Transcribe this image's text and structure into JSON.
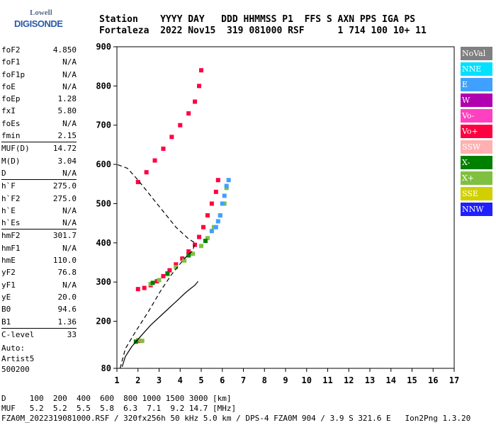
{
  "logo": {
    "line1": "Lowell",
    "line2": "DIGISONDE"
  },
  "header": {
    "line1": "Station    YYYY DAY   DDD HHMMSS P1  FFS S AXN PPS IGA PS",
    "line2": "Fortaleza  2022 Nov15  319 081000 RSF      1 714 100 10+ 11"
  },
  "params": {
    "group1": [
      {
        "name": "foF2",
        "value": "4.850"
      },
      {
        "name": "foF1",
        "value": "N/A"
      },
      {
        "name": "foF1p",
        "value": "N/A"
      },
      {
        "name": "foE",
        "value": "N/A"
      },
      {
        "name": "foEp",
        "value": "1.28"
      },
      {
        "name": "fxI",
        "value": "5.80"
      },
      {
        "name": "foEs",
        "value": "N/A"
      },
      {
        "name": "fmin",
        "value": "2.15"
      }
    ],
    "group2": [
      {
        "name": "MUF(D)",
        "value": "14.72"
      },
      {
        "name": "M(D)",
        "value": "3.04"
      },
      {
        "name": "D",
        "value": "N/A"
      }
    ],
    "group3": [
      {
        "name": "h`F",
        "value": "275.0"
      },
      {
        "name": "h`F2",
        "value": "275.0"
      },
      {
        "name": "h`E",
        "value": "N/A"
      },
      {
        "name": "h`Es",
        "value": "N/A"
      }
    ],
    "group4": [
      {
        "name": "hmF2",
        "value": "301.7"
      },
      {
        "name": "hmF1",
        "value": "N/A"
      },
      {
        "name": "hmE",
        "value": "110.0"
      },
      {
        "name": "yF2",
        "value": "76.8"
      },
      {
        "name": "yF1",
        "value": "N/A"
      },
      {
        "name": "yE",
        "value": "20.0"
      },
      {
        "name": "B0",
        "value": "94.6"
      },
      {
        "name": "B1",
        "value": "1.36"
      }
    ],
    "group5": [
      {
        "name": "C-level",
        "value": "33"
      }
    ]
  },
  "auto": {
    "line1": "Auto:",
    "line2": "Artist5",
    "line3": "500200"
  },
  "legend": [
    {
      "label": "NoVal",
      "color": "#808080"
    },
    {
      "label": "NNE",
      "color": "#00e0ff"
    },
    {
      "label": "E",
      "color": "#40a0ff"
    },
    {
      "label": "W",
      "color": "#b000b0"
    },
    {
      "label": "Vo-",
      "color": "#ff40c0"
    },
    {
      "label": "Vo+",
      "color": "#ff0040"
    },
    {
      "label": "SSW",
      "color": "#ffb0b0"
    },
    {
      "label": "X-",
      "color": "#008000"
    },
    {
      "label": "X+",
      "color": "#80c040"
    },
    {
      "label": "SSE",
      "color": "#d0d000"
    },
    {
      "label": "NNW",
      "color": "#2020ff"
    }
  ],
  "footer": {
    "line1": "D     100  200  400  600  800 1000 1500 3000 [km]",
    "line2": "MUF   5.2  5.2  5.5  5.8  6.3  7.1  9.2 14.7 [MHz]",
    "line3": "FZA0M_2022319081000.RSF / 320fx256h 50 kHz 5.0 km / DPS-4 FZA0M 904 / 3.9 S 321.6 E   Ion2Png 1.3.20"
  },
  "chart_data": {
    "type": "scatter",
    "xlim": [
      1,
      17
    ],
    "ylim": [
      80,
      900
    ],
    "x_ticks": [
      1,
      2,
      3,
      4,
      5,
      6,
      7,
      8,
      9,
      10,
      11,
      12,
      13,
      14,
      15,
      16,
      17
    ],
    "y_ticks": [
      80,
      200,
      300,
      400,
      500,
      600,
      700,
      800,
      900
    ],
    "series": [
      {
        "name": "Vo+",
        "points": [
          [
            2.0,
            282
          ],
          [
            2.3,
            285
          ],
          [
            2.6,
            292
          ],
          [
            2.9,
            302
          ],
          [
            3.2,
            315
          ],
          [
            3.5,
            330
          ],
          [
            3.8,
            345
          ],
          [
            4.1,
            360
          ],
          [
            4.4,
            378
          ],
          [
            4.7,
            395
          ],
          [
            4.9,
            415
          ],
          [
            5.1,
            440
          ],
          [
            5.3,
            470
          ],
          [
            5.5,
            500
          ],
          [
            5.7,
            530
          ],
          [
            5.8,
            560
          ],
          [
            2.0,
            555
          ],
          [
            2.4,
            580
          ],
          [
            2.8,
            610
          ],
          [
            3.2,
            640
          ],
          [
            3.6,
            670
          ],
          [
            4.0,
            700
          ],
          [
            4.4,
            730
          ],
          [
            4.7,
            760
          ],
          [
            4.9,
            800
          ],
          [
            5.0,
            840
          ],
          [
            2.1,
            150
          ]
        ]
      },
      {
        "name": "X+",
        "points": [
          [
            2.6,
            295
          ],
          [
            3.0,
            305
          ],
          [
            3.4,
            320
          ],
          [
            3.8,
            338
          ],
          [
            4.2,
            355
          ],
          [
            4.6,
            372
          ],
          [
            5.0,
            392
          ],
          [
            5.3,
            412
          ],
          [
            5.6,
            440
          ],
          [
            5.9,
            470
          ],
          [
            6.1,
            500
          ],
          [
            6.2,
            540
          ],
          [
            2.2,
            150
          ],
          [
            2.0,
            152
          ]
        ]
      },
      {
        "name": "E",
        "points": [
          [
            5.7,
            440
          ],
          [
            5.9,
            470
          ],
          [
            6.0,
            500
          ],
          [
            6.1,
            520
          ],
          [
            6.2,
            545
          ],
          [
            6.3,
            560
          ],
          [
            5.5,
            430
          ],
          [
            5.8,
            455
          ]
        ]
      },
      {
        "name": "X-",
        "points": [
          [
            2.7,
            298
          ],
          [
            3.4,
            322
          ],
          [
            4.4,
            368
          ],
          [
            5.2,
            405
          ],
          [
            1.9,
            148
          ]
        ]
      }
    ],
    "profile_solid": [
      [
        1.25,
        84
      ],
      [
        1.4,
        110
      ],
      [
        1.7,
        135
      ],
      [
        2.1,
        160
      ],
      [
        2.6,
        190
      ],
      [
        3.2,
        220
      ],
      [
        3.8,
        250
      ],
      [
        4.3,
        275
      ],
      [
        4.7,
        292
      ],
      [
        4.85,
        301.7
      ]
    ],
    "profile_dashed": [
      [
        1.15,
        80
      ],
      [
        1.4,
        130
      ],
      [
        1.9,
        175
      ],
      [
        2.5,
        225
      ],
      [
        3.1,
        280
      ],
      [
        3.6,
        320
      ],
      [
        4.2,
        360
      ],
      [
        4.6,
        380
      ],
      [
        4.7,
        400
      ],
      [
        4.4,
        410
      ],
      [
        3.8,
        440
      ],
      [
        3.2,
        480
      ],
      [
        2.6,
        520
      ],
      [
        2.0,
        560
      ],
      [
        1.5,
        590
      ],
      [
        1.0,
        600
      ]
    ]
  }
}
